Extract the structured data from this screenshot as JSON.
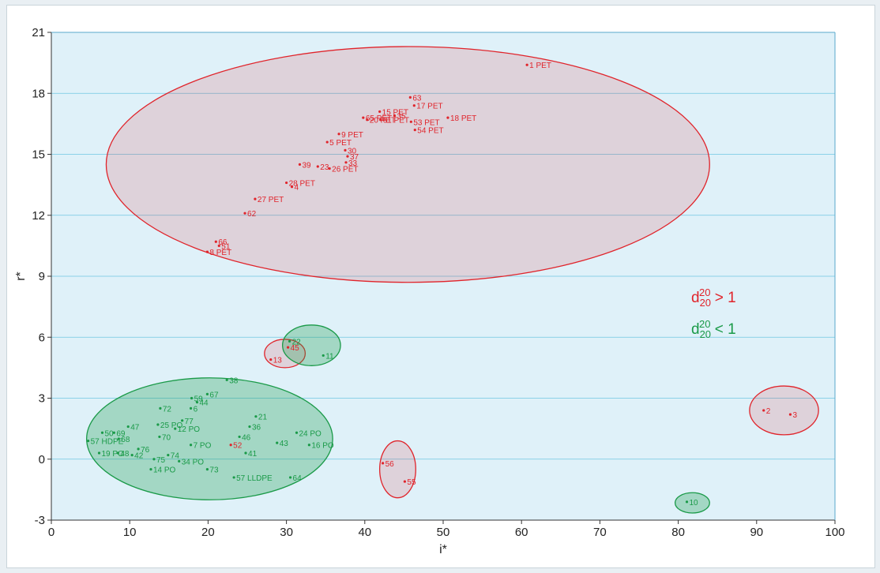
{
  "chart_data": {
    "type": "scatter",
    "xlabel": "i*",
    "ylabel": "r*",
    "xlim": [
      0,
      100
    ],
    "ylim": [
      -3,
      21
    ],
    "xticks": [
      0,
      10,
      20,
      30,
      40,
      50,
      60,
      70,
      80,
      90,
      100
    ],
    "yticks": [
      -3,
      0,
      3,
      6,
      9,
      12,
      15,
      18,
      21
    ],
    "grid": "horizontal",
    "colors": {
      "red": "#e0242b",
      "green": "#1a9a48",
      "plot_bg": "#dff1f9",
      "grid": "#6fc6e2"
    },
    "legend": {
      "position": "right-middle",
      "items": [
        {
          "base": "d",
          "sup": "20",
          "sub": "20",
          "rel": " > 1",
          "color": "red"
        },
        {
          "base": "d",
          "sup": "20",
          "sub": "20",
          "rel": " < 1",
          "color": "green"
        }
      ]
    },
    "clusters": [
      {
        "color": "red",
        "cx": 45.5,
        "cy": 14.5,
        "rx": 38.5,
        "ry": 5.8
      },
      {
        "color": "red",
        "cx": 29.8,
        "cy": 5.2,
        "rx": 2.6,
        "ry": 0.7
      },
      {
        "color": "green",
        "cx": 33.2,
        "cy": 5.6,
        "rx": 3.7,
        "ry": 1.0
      },
      {
        "color": "green",
        "cx": 20.2,
        "cy": 1.0,
        "rx": 15.7,
        "ry": 3.0
      },
      {
        "color": "red",
        "cx": 44.2,
        "cy": -0.5,
        "rx": 2.3,
        "ry": 1.4
      },
      {
        "color": "red",
        "cx": 93.5,
        "cy": 2.4,
        "rx": 4.4,
        "ry": 1.2
      },
      {
        "color": "green",
        "cx": 81.8,
        "cy": -2.15,
        "rx": 2.2,
        "ry": 0.5
      }
    ],
    "points": [
      {
        "label": "1 PET",
        "x": 60.7,
        "y": 19.4,
        "color": "red"
      },
      {
        "label": "63",
        "x": 45.8,
        "y": 17.8,
        "color": "red"
      },
      {
        "label": "15 PET",
        "x": 41.9,
        "y": 17.1,
        "color": "red"
      },
      {
        "label": "17 PET",
        "x": 46.3,
        "y": 17.4,
        "color": "red"
      },
      {
        "label": "65 PET",
        "x": 39.8,
        "y": 16.8,
        "color": "red"
      },
      {
        "label": "35",
        "x": 43.8,
        "y": 16.9,
        "color": "red"
      },
      {
        "label": "20 PET",
        "x": 40.3,
        "y": 16.7,
        "color": "red"
      },
      {
        "label": "61 PET",
        "x": 42.0,
        "y": 16.7,
        "color": "red"
      },
      {
        "label": "53 PET",
        "x": 45.9,
        "y": 16.6,
        "color": "red"
      },
      {
        "label": "18 PET",
        "x": 50.6,
        "y": 16.8,
        "color": "red"
      },
      {
        "label": "54 PET",
        "x": 46.4,
        "y": 16.2,
        "color": "red"
      },
      {
        "label": "9 PET",
        "x": 36.7,
        "y": 16.0,
        "color": "red"
      },
      {
        "label": "5 PET",
        "x": 35.2,
        "y": 15.6,
        "color": "red"
      },
      {
        "label": "30",
        "x": 37.5,
        "y": 15.2,
        "color": "red"
      },
      {
        "label": "37",
        "x": 37.8,
        "y": 14.9,
        "color": "red"
      },
      {
        "label": "39",
        "x": 31.7,
        "y": 14.5,
        "color": "red"
      },
      {
        "label": "23",
        "x": 34.0,
        "y": 14.4,
        "color": "red"
      },
      {
        "label": "33",
        "x": 37.6,
        "y": 14.6,
        "color": "red"
      },
      {
        "label": "26 PET",
        "x": 35.5,
        "y": 14.3,
        "color": "red"
      },
      {
        "label": "28 PET",
        "x": 30.0,
        "y": 13.6,
        "color": "red"
      },
      {
        "label": "4",
        "x": 30.7,
        "y": 13.4,
        "color": "red"
      },
      {
        "label": "27 PET",
        "x": 26.0,
        "y": 12.8,
        "color": "red"
      },
      {
        "label": "62",
        "x": 24.7,
        "y": 12.1,
        "color": "red"
      },
      {
        "label": "66",
        "x": 21.0,
        "y": 10.7,
        "color": "red"
      },
      {
        "label": "8 PET",
        "x": 19.9,
        "y": 10.2,
        "color": "red"
      },
      {
        "label": "51",
        "x": 21.4,
        "y": 10.5,
        "color": "red"
      },
      {
        "label": "22",
        "x": 30.4,
        "y": 5.8,
        "color": "green"
      },
      {
        "label": "45",
        "x": 30.2,
        "y": 5.5,
        "color": "red"
      },
      {
        "label": "13",
        "x": 28.0,
        "y": 4.9,
        "color": "red"
      },
      {
        "label": "11",
        "x": 34.7,
        "y": 5.1,
        "color": "green"
      },
      {
        "label": "38",
        "x": 22.4,
        "y": 3.9,
        "color": "green"
      },
      {
        "label": "67",
        "x": 19.9,
        "y": 3.2,
        "color": "green"
      },
      {
        "label": "59",
        "x": 17.9,
        "y": 3.0,
        "color": "green"
      },
      {
        "label": "44",
        "x": 18.6,
        "y": 2.8,
        "color": "green"
      },
      {
        "label": "72",
        "x": 13.9,
        "y": 2.5,
        "color": "green"
      },
      {
        "label": "6",
        "x": 17.8,
        "y": 2.5,
        "color": "green"
      },
      {
        "label": "21",
        "x": 26.1,
        "y": 2.1,
        "color": "green"
      },
      {
        "label": "25 PO",
        "x": 13.6,
        "y": 1.7,
        "color": "green"
      },
      {
        "label": "77",
        "x": 16.7,
        "y": 1.9,
        "color": "green"
      },
      {
        "label": "36",
        "x": 25.3,
        "y": 1.6,
        "color": "green"
      },
      {
        "label": "50",
        "x": 6.5,
        "y": 1.3,
        "color": "green"
      },
      {
        "label": "69",
        "x": 8.0,
        "y": 1.3,
        "color": "green"
      },
      {
        "label": "47",
        "x": 9.8,
        "y": 1.6,
        "color": "green"
      },
      {
        "label": "12 PO",
        "x": 15.8,
        "y": 1.5,
        "color": "green"
      },
      {
        "label": "24 PO",
        "x": 31.3,
        "y": 1.3,
        "color": "green"
      },
      {
        "label": "70",
        "x": 13.8,
        "y": 1.1,
        "color": "green"
      },
      {
        "label": "68",
        "x": 8.6,
        "y": 1.0,
        "color": "green"
      },
      {
        "label": "46",
        "x": 24.0,
        "y": 1.1,
        "color": "green"
      },
      {
        "label": "57 HDPE",
        "x": 4.7,
        "y": 0.9,
        "color": "green"
      },
      {
        "label": "76",
        "x": 11.1,
        "y": 0.5,
        "color": "green"
      },
      {
        "label": "7 PO",
        "x": 17.8,
        "y": 0.7,
        "color": "green"
      },
      {
        "label": "52",
        "x": 22.9,
        "y": 0.7,
        "color": "red"
      },
      {
        "label": "43",
        "x": 28.8,
        "y": 0.8,
        "color": "green"
      },
      {
        "label": "16 PO",
        "x": 32.9,
        "y": 0.7,
        "color": "green"
      },
      {
        "label": "19 PO",
        "x": 6.1,
        "y": 0.3,
        "color": "green"
      },
      {
        "label": "48",
        "x": 8.5,
        "y": 0.3,
        "color": "green"
      },
      {
        "label": "42",
        "x": 10.3,
        "y": 0.2,
        "color": "green"
      },
      {
        "label": "41",
        "x": 24.8,
        "y": 0.3,
        "color": "green"
      },
      {
        "label": "74",
        "x": 14.9,
        "y": 0.2,
        "color": "green"
      },
      {
        "label": "75",
        "x": 13.1,
        "y": 0.0,
        "color": "green"
      },
      {
        "label": "34 PO",
        "x": 16.3,
        "y": -0.1,
        "color": "green"
      },
      {
        "label": "14 PO",
        "x": 12.7,
        "y": -0.5,
        "color": "green"
      },
      {
        "label": "73",
        "x": 19.9,
        "y": -0.5,
        "color": "green"
      },
      {
        "label": "57 LLDPE",
        "x": 23.3,
        "y": -0.9,
        "color": "green"
      },
      {
        "label": "64",
        "x": 30.5,
        "y": -0.9,
        "color": "green"
      },
      {
        "label": "56",
        "x": 42.3,
        "y": -0.2,
        "color": "red"
      },
      {
        "label": "55",
        "x": 45.1,
        "y": -1.1,
        "color": "red"
      },
      {
        "label": "2",
        "x": 90.9,
        "y": 2.4,
        "color": "red"
      },
      {
        "label": "3",
        "x": 94.3,
        "y": 2.2,
        "color": "red"
      },
      {
        "label": "10",
        "x": 81.1,
        "y": -2.1,
        "color": "green"
      }
    ]
  }
}
